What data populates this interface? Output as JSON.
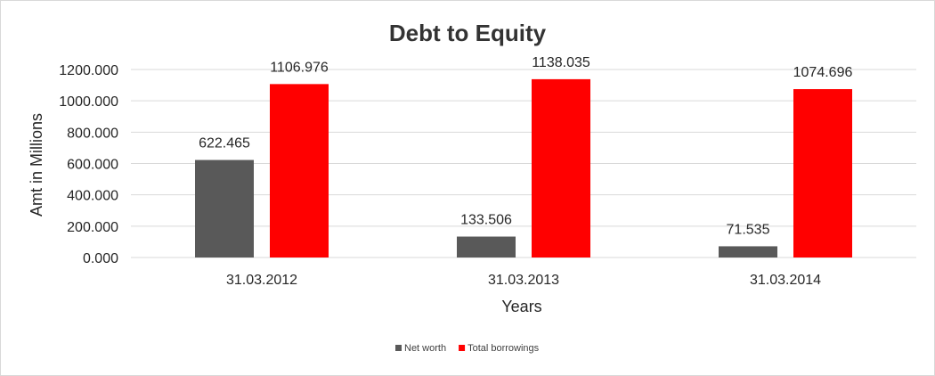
{
  "chart_data": {
    "type": "bar",
    "title": "Debt to Equity",
    "xlabel": "Years",
    "ylabel": "Amt in Millions",
    "categories": [
      "31.03.2012",
      "31.03.2013",
      "31.03.2014"
    ],
    "series": [
      {
        "name": "Net worth",
        "values": [
          622.465,
          133.506,
          71.535
        ],
        "labels": [
          "622.465",
          "133.506",
          "71.535"
        ],
        "color": "#595959"
      },
      {
        "name": "Total borrowings",
        "values": [
          1106.976,
          1138.035,
          1074.696
        ],
        "labels": [
          "1106.976",
          "1138.035",
          "1074.696"
        ],
        "color": "#ff0000"
      }
    ],
    "ylim": [
      0,
      1200
    ],
    "yticks": [
      0,
      200,
      400,
      600,
      800,
      1000,
      1200
    ],
    "ytick_labels": [
      "0.000",
      "200.000",
      "400.000",
      "600.000",
      "800.000",
      "1000.000",
      "1200.000"
    ],
    "grid": true,
    "legend_position": "bottom"
  }
}
